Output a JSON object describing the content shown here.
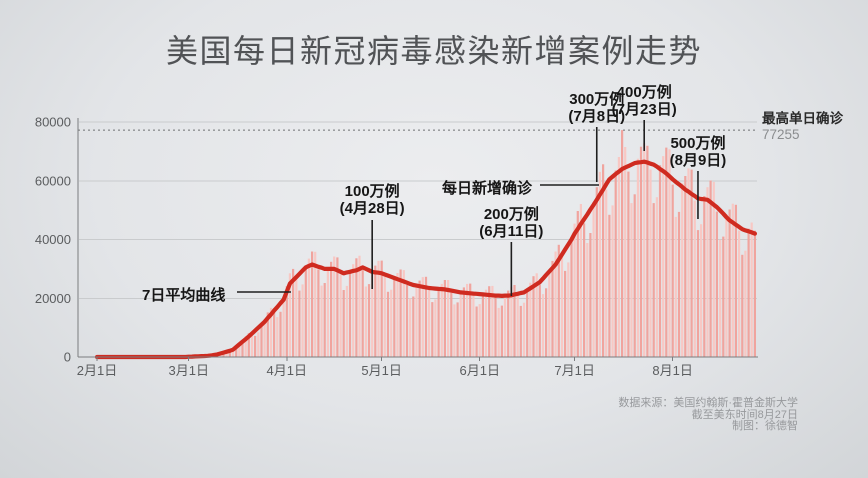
{
  "chart_data": {
    "type": "bar",
    "title": "美国每日新冠病毒感染新增案例走势",
    "x_ticks": [
      {
        "label": "2月1日",
        "day": 0
      },
      {
        "label": "3月1日",
        "day": 29
      },
      {
        "label": "4月1日",
        "day": 60
      },
      {
        "label": "5月1日",
        "day": 90
      },
      {
        "label": "6月1日",
        "day": 121
      },
      {
        "label": "7月1日",
        "day": 151
      },
      {
        "label": "8月1日",
        "day": 182
      }
    ],
    "y_ticks": [
      0,
      20000,
      40000,
      60000,
      80000
    ],
    "ylim": [
      0,
      80000
    ],
    "n_days": 209,
    "max_single_day": 77255,
    "series": [
      {
        "name": "每日新增确诊",
        "type": "bar",
        "values": [
          0,
          0,
          0,
          0,
          0,
          0,
          0,
          0,
          0,
          0,
          0,
          0,
          0,
          0,
          0,
          0,
          0,
          0,
          0,
          0,
          0,
          0,
          0,
          0,
          0,
          0,
          0,
          0,
          0,
          100,
          100,
          200,
          300,
          300,
          400,
          400,
          400,
          600,
          900,
          1300,
          1700,
          2100,
          2000,
          2000,
          2900,
          4400,
          5600,
          7000,
          8100,
          7800,
          7200,
          8400,
          11200,
          13000,
          15200,
          16700,
          15300,
          13600,
          15400,
          19900,
          24100,
          28500,
          30000,
          26400,
          22600,
          24700,
          31100,
          33500,
          35900,
          35800,
          29800,
          24300,
          25200,
          30600,
          32400,
          34200,
          33900,
          28100,
          22800,
          24200,
          29600,
          31600,
          33600,
          34500,
          29600,
          24000,
          24800,
          29600,
          31100,
          32700,
          32800,
          27300,
          22200,
          22900,
          27400,
          28600,
          29800,
          29600,
          24500,
          19900,
          20600,
          24800,
          26000,
          27200,
          27300,
          22800,
          18700,
          19600,
          23700,
          24900,
          26200,
          26200,
          21900,
          17900,
          18600,
          22400,
          23700,
          24900,
          25000,
          21000,
          17200,
          18000,
          21700,
          22900,
          24100,
          24200,
          20300,
          16700,
          17500,
          21300,
          22600,
          23900,
          24500,
          20900,
          17400,
          18500,
          23200,
          25300,
          27500,
          28500,
          24700,
          21400,
          23400,
          29700,
          32700,
          35900,
          38200,
          33900,
          29300,
          32200,
          40800,
          45400,
          49700,
          52100,
          45500,
          38800,
          42200,
          52800,
          57800,
          63000,
          65600,
          57000,
          48400,
          51600,
          63500,
          68100,
          77255,
          71500,
          63100,
          52400,
          55400,
          67500,
          71600,
          72800,
          71900,
          63800,
          52400,
          54400,
          65300,
          68400,
          71300,
          70700,
          58700,
          47700,
          49400,
          59100,
          61600,
          64200,
          63800,
          53200,
          43200,
          45200,
          54800,
          57800,
          60100,
          59600,
          49500,
          39900,
          41000,
          48600,
          50200,
          52200,
          51800,
          43000,
          34800,
          36200,
          43700,
          45800,
          43000
        ]
      },
      {
        "name": "7日平均曲线",
        "type": "line",
        "values": [
          0,
          0,
          0,
          0,
          0,
          0,
          0,
          0,
          0,
          0,
          0,
          0,
          0,
          0,
          0,
          0,
          0,
          0,
          0,
          0,
          0,
          0,
          0,
          0,
          0,
          0,
          0,
          0,
          0,
          100,
          150,
          200,
          250,
          300,
          350,
          400,
          500,
          700,
          900,
          1200,
          1500,
          1800,
          2100,
          2500,
          3400,
          4300,
          5200,
          6100,
          7000,
          8000,
          9000,
          10000,
          11000,
          12000,
          13300,
          14500,
          15800,
          17000,
          18300,
          19500,
          22300,
          25000,
          26100,
          27200,
          28300,
          29400,
          30500,
          31000,
          31500,
          31100,
          30700,
          30400,
          30000,
          30000,
          30000,
          30000,
          29500,
          29000,
          28500,
          28800,
          29000,
          29300,
          29500,
          30000,
          30500,
          30000,
          29500,
          29000,
          28800,
          28700,
          28500,
          28100,
          27700,
          27300,
          26900,
          26500,
          26100,
          25700,
          25300,
          24900,
          24500,
          24300,
          24100,
          23900,
          23700,
          23500,
          23400,
          23300,
          23200,
          23100,
          23000,
          22800,
          22600,
          22400,
          22200,
          22000,
          21900,
          21800,
          21700,
          21600,
          21500,
          21400,
          21300,
          21200,
          21100,
          21000,
          20900,
          20900,
          20800,
          20900,
          20900,
          21000,
          21300,
          21500,
          21800,
          22000,
          22700,
          23400,
          24100,
          24800,
          25500,
          26700,
          27900,
          29100,
          30300,
          31500,
          33200,
          34900,
          36600,
          38300,
          40000,
          42000,
          43600,
          45300,
          46900,
          48500,
          50200,
          51800,
          53500,
          55300,
          57000,
          58800,
          60500,
          61400,
          62300,
          63100,
          64000,
          64500,
          65000,
          65500,
          66000,
          66200,
          66300,
          66500,
          66200,
          65800,
          65500,
          64800,
          64000,
          63300,
          62500,
          61500,
          60500,
          59600,
          58800,
          57900,
          57000,
          56300,
          55500,
          54800,
          54000,
          53800,
          53700,
          53500,
          52700,
          51800,
          51000,
          49900,
          48800,
          47600,
          46500,
          45800,
          45000,
          44300,
          43500,
          43100,
          42800,
          42400,
          42000
        ]
      }
    ]
  },
  "annotations": {
    "avg_curve_label": "7日平均曲线",
    "daily_bars_label": "每日新增确诊",
    "milestones": [
      {
        "line1": "100万例",
        "line2": "(4月28日)",
        "day": 87
      },
      {
        "line1": "200万例",
        "line2": "(6月11日)",
        "day": 131
      },
      {
        "line1": "300万例",
        "line2": "(7月8日)",
        "day": 158
      },
      {
        "line1": "400万例",
        "line2": "(7月23日)",
        "day": 173
      },
      {
        "line1": "500万例",
        "line2": "(8月9日)",
        "day": 190
      }
    ],
    "max_label": "最高单日确诊",
    "max_value": "77255"
  },
  "source": {
    "lines": [
      "数据来源：美国约翰斯·霍普金斯大学",
      "截至美东时间8月27日",
      "制图：徐德智"
    ]
  },
  "colors": {
    "bar_dark": "#f0a49e",
    "bar_light": "#f8c8c4",
    "avg_line": "#cf2b20",
    "axis": "#7b7d7f",
    "grid": "#c9cbcd",
    "dotted_max": "#6e7072"
  }
}
